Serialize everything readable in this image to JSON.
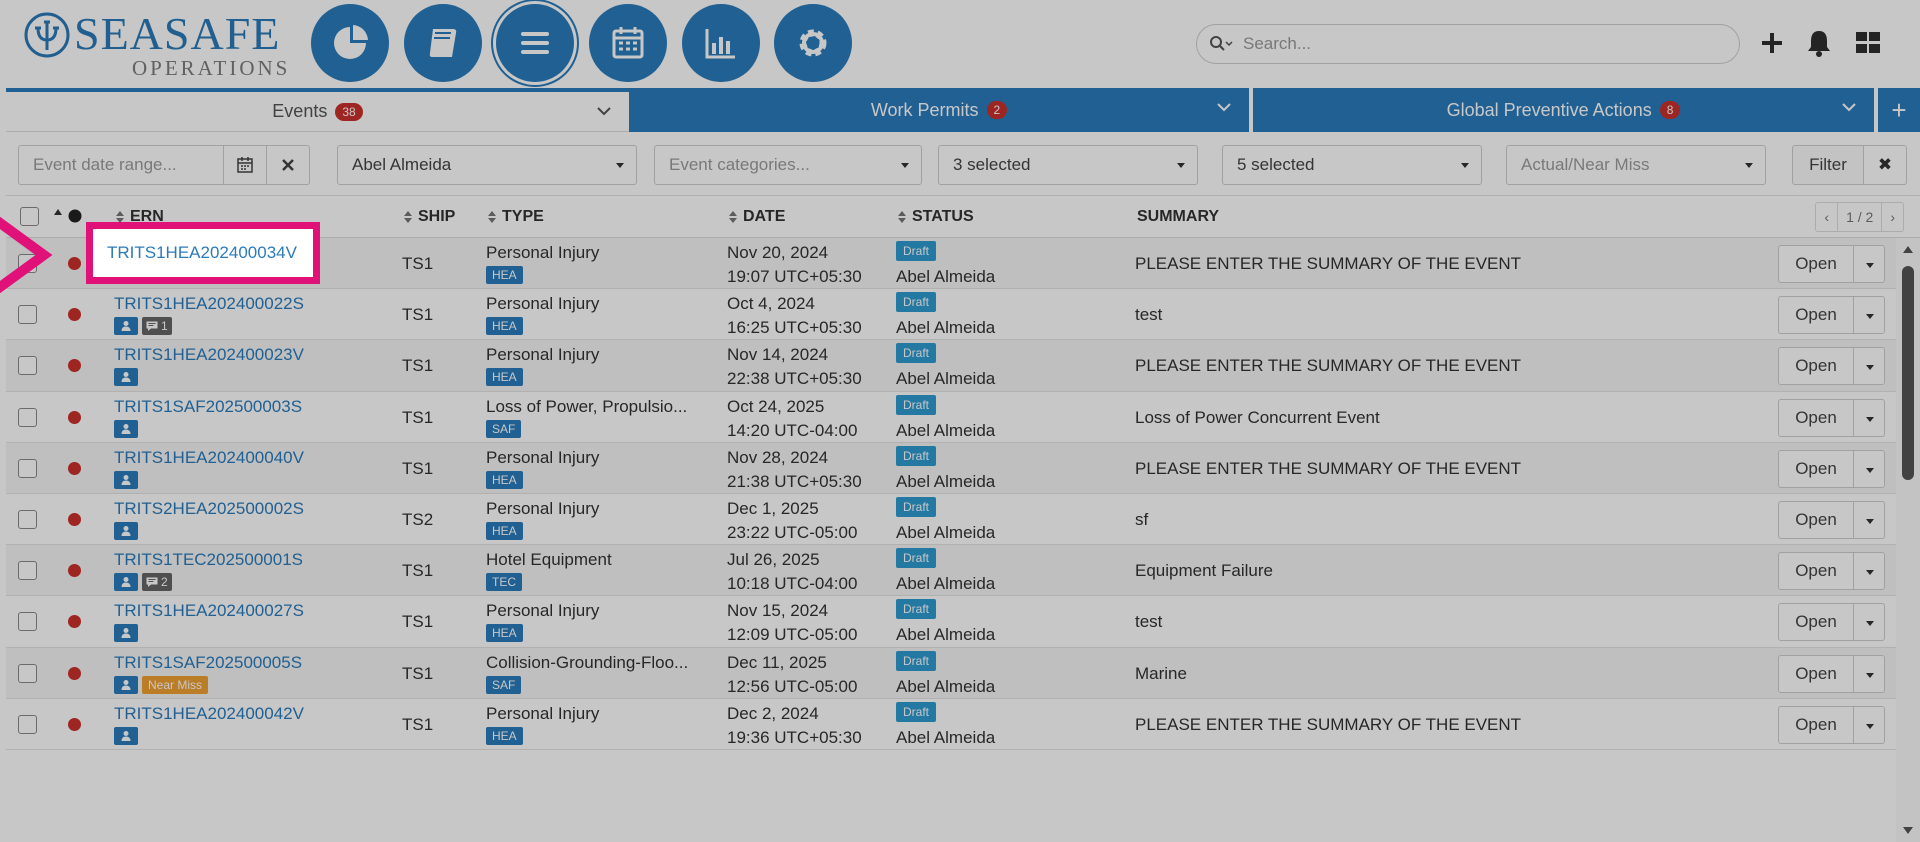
{
  "header": {
    "brand": "SEASAFE",
    "subtitle": "OPERATIONS",
    "search_placeholder": "Search...",
    "nav_icons": [
      "pie-chart-icon",
      "book-icon",
      "menu-icon",
      "calendar-icon",
      "bar-chart-icon",
      "gear-icon"
    ],
    "right_icons": [
      "plus-icon",
      "bell-icon",
      "grid-icon"
    ]
  },
  "tabs": [
    {
      "label": "Events",
      "badge": "38"
    },
    {
      "label": "Work Permits",
      "badge": "2"
    },
    {
      "label": "Global Preventive Actions",
      "badge": "8"
    },
    {
      "label": "+"
    }
  ],
  "filters": {
    "date_range_placeholder": "Event date range...",
    "person": "Abel Almeida",
    "categories_placeholder": "Event categories...",
    "select1": "3 selected",
    "select2": "5 selected",
    "actual_near_miss_placeholder": "Actual/Near Miss",
    "filter_label": "Filter",
    "clear_label": "✖"
  },
  "table": {
    "headers": {
      "ern": "ERN",
      "ship": "SHIP",
      "type": "TYPE",
      "date": "DATE",
      "status": "STATUS",
      "summary": "SUMMARY"
    },
    "pagination": "1 / 2",
    "open_label": "Open",
    "rows": [
      {
        "ern": "TRITS1HEA202400034V",
        "comments": "",
        "near_miss": "",
        "ship": "TS1",
        "type": "Personal Injury",
        "type_code": "HEA",
        "date": "Nov 20, 2024",
        "time": "19:07 UTC+05:30",
        "status": "Draft",
        "assignee": "Abel Almeida",
        "summary": "PLEASE ENTER THE SUMMARY OF THE EVENT"
      },
      {
        "ern": "TRITS1HEA202400022S",
        "comments": "1",
        "near_miss": "",
        "ship": "TS1",
        "type": "Personal Injury",
        "type_code": "HEA",
        "date": "Oct 4, 2024",
        "time": "16:25 UTC+05:30",
        "status": "Draft",
        "assignee": "Abel Almeida",
        "summary": "test"
      },
      {
        "ern": "TRITS1HEA202400023V",
        "comments": "",
        "near_miss": "",
        "ship": "TS1",
        "type": "Personal Injury",
        "type_code": "HEA",
        "date": "Nov 14, 2024",
        "time": "22:38 UTC+05:30",
        "status": "Draft",
        "assignee": "Abel Almeida",
        "summary": "PLEASE ENTER THE SUMMARY OF THE EVENT"
      },
      {
        "ern": "TRITS1SAF202500003S",
        "comments": "",
        "near_miss": "",
        "ship": "TS1",
        "type": "Loss of Power, Propulsio...",
        "type_code": "SAF",
        "date": "Oct 24, 2025",
        "time": "14:20 UTC-04:00",
        "status": "Draft",
        "assignee": "Abel Almeida",
        "summary": "Loss of Power Concurrent Event"
      },
      {
        "ern": "TRITS1HEA202400040V",
        "comments": "",
        "near_miss": "",
        "ship": "TS1",
        "type": "Personal Injury",
        "type_code": "HEA",
        "date": "Nov 28, 2024",
        "time": "21:38 UTC+05:30",
        "status": "Draft",
        "assignee": "Abel Almeida",
        "summary": "PLEASE ENTER THE SUMMARY OF THE EVENT"
      },
      {
        "ern": "TRITS2HEA202500002S",
        "comments": "",
        "near_miss": "",
        "ship": "TS2",
        "type": "Personal Injury",
        "type_code": "HEA",
        "date": "Dec 1, 2025",
        "time": "23:22 UTC-05:00",
        "status": "Draft",
        "assignee": "Abel Almeida",
        "summary": "sf"
      },
      {
        "ern": "TRITS1TEC202500001S",
        "comments": "2",
        "near_miss": "",
        "ship": "TS1",
        "type": "Hotel Equipment",
        "type_code": "TEC",
        "date": "Jul 26, 2025",
        "time": "10:18 UTC-04:00",
        "status": "Draft",
        "assignee": "Abel Almeida",
        "summary": "Equipment Failure"
      },
      {
        "ern": "TRITS1HEA202400027S",
        "comments": "",
        "near_miss": "",
        "ship": "TS1",
        "type": "Personal Injury",
        "type_code": "HEA",
        "date": "Nov 15, 2024",
        "time": "12:09 UTC-05:00",
        "status": "Draft",
        "assignee": "Abel Almeida",
        "summary": "test"
      },
      {
        "ern": "TRITS1SAF202500005S",
        "comments": "",
        "near_miss": "Near Miss",
        "ship": "TS1",
        "type": "Collision-Grounding-Floo...",
        "type_code": "SAF",
        "date": "Dec 11, 2025",
        "time": "12:56 UTC-05:00",
        "status": "Draft",
        "assignee": "Abel Almeida",
        "summary": "Marine"
      },
      {
        "ern": "TRITS1HEA202400042V",
        "comments": "",
        "near_miss": "",
        "ship": "TS1",
        "type": "Personal Injury",
        "type_code": "HEA",
        "date": "Dec 2, 2024",
        "time": "19:36 UTC+05:30",
        "status": "Draft",
        "assignee": "Abel Almeida",
        "summary": "PLEASE ENTER THE SUMMARY OF THE EVENT"
      }
    ]
  },
  "highlight": {
    "text": "TRITS1HEA202400034V",
    "color": "#e0127a"
  },
  "colors": {
    "brand_blue": "#2b7bbb",
    "status_red": "#c9302c",
    "draft_blue": "#2f9bd1"
  }
}
